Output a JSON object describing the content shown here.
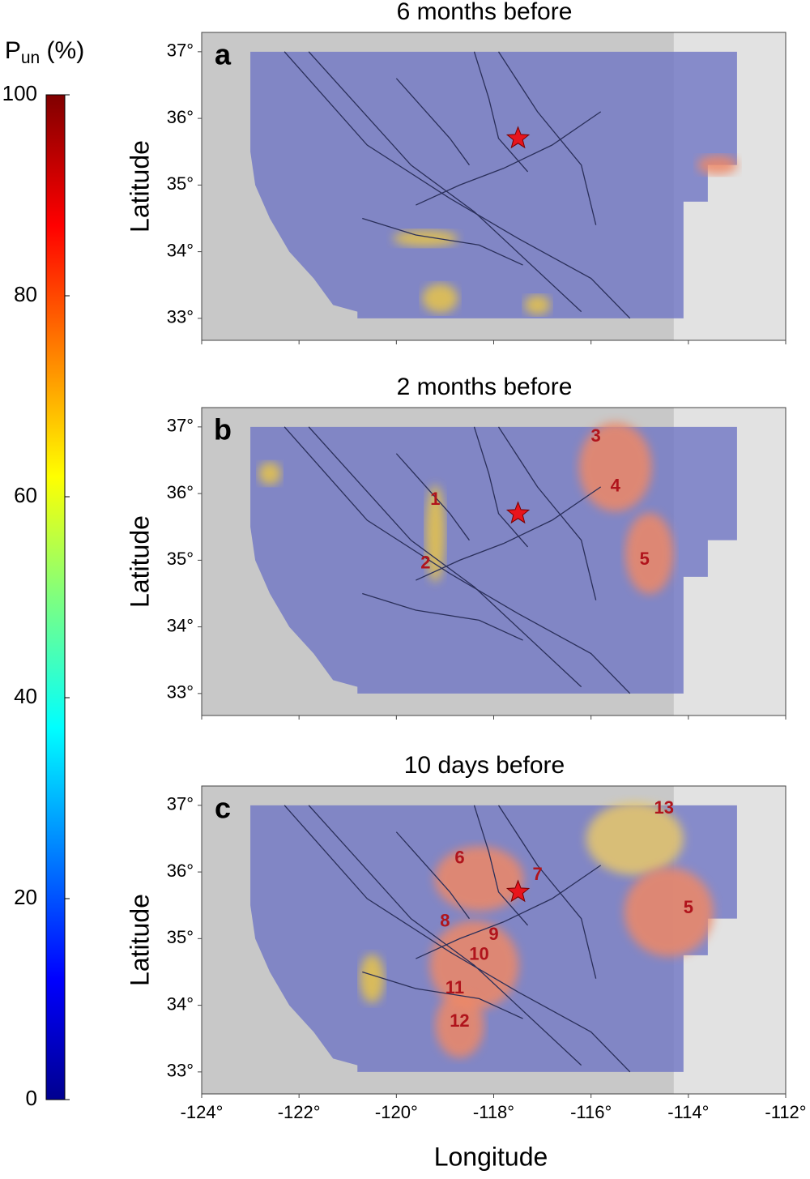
{
  "colorbar": {
    "symbol": "P",
    "subscript": "un",
    "unit": "(%)",
    "lim": [
      0,
      100
    ],
    "ticks": [
      0,
      20,
      40,
      60,
      80,
      100
    ]
  },
  "axes": {
    "xlabel": "Longitude",
    "ylabel": "Latitude",
    "xlim": [
      -124,
      -112
    ],
    "ylim": [
      32.67,
      37.29
    ],
    "xticks": [
      {
        "value": -124,
        "label": "-124°"
      },
      {
        "value": -122,
        "label": "-122°"
      },
      {
        "value": -120,
        "label": "-120°"
      },
      {
        "value": -118,
        "label": "-118°"
      },
      {
        "value": -116,
        "label": "-116°"
      },
      {
        "value": -114,
        "label": "-114°"
      },
      {
        "value": -112,
        "label": "-112°"
      }
    ],
    "yticks": [
      {
        "value": 33,
        "label": "33°"
      },
      {
        "value": 34,
        "label": "34°"
      },
      {
        "value": 35,
        "label": "35°"
      },
      {
        "value": 36,
        "label": "36°"
      },
      {
        "value": 37,
        "label": "37°"
      }
    ]
  },
  "panels": [
    {
      "title": "6 months before",
      "letter": "a",
      "regions": []
    },
    {
      "title": "2 months before",
      "letter": "b",
      "regions": [
        "1",
        "2",
        "3",
        "4",
        "5"
      ]
    },
    {
      "title": "10 days before",
      "letter": "c",
      "regions": [
        "6",
        "7",
        "8",
        "9",
        "10",
        "11",
        "12",
        "13",
        "5"
      ]
    }
  ]
}
